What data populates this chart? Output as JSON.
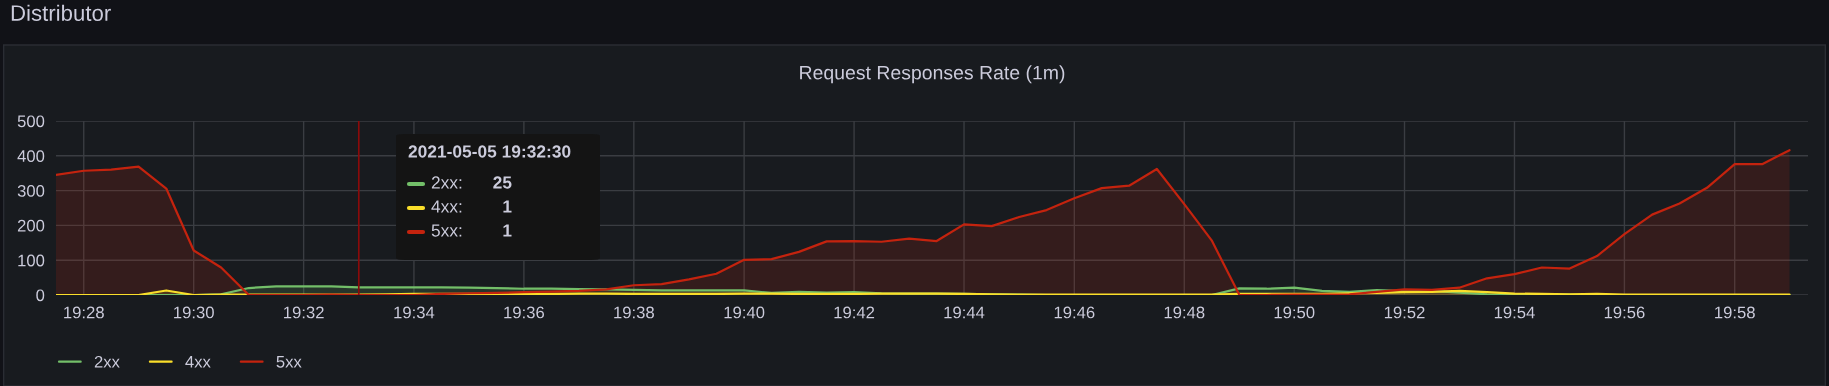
{
  "chart_data": {
    "type": "area",
    "title": "Request Responses Rate (1m)",
    "annotations": [
      "Distributor",
      "2021-05-05 19:32:30",
      "2xx:",
      "25",
      "4xx:",
      "1",
      "5xx:",
      "1"
    ],
    "x": [
      19.4583,
      19.4667,
      19.475,
      19.4833,
      19.4917,
      19.5,
      19.5083,
      19.5167,
      19.525,
      19.5333,
      19.5417,
      19.55,
      19.5583,
      19.5667,
      19.575,
      19.5833,
      19.5917,
      19.6,
      19.6083,
      19.6167,
      19.625,
      19.6333,
      19.6417,
      19.65,
      19.6583,
      19.6667,
      19.675,
      19.6833,
      19.6917,
      19.7,
      19.7083,
      19.7167,
      19.725,
      19.7333,
      19.7417,
      19.75,
      19.7583,
      19.7667,
      19.775,
      19.7833,
      19.7917,
      19.8,
      19.8083,
      19.8167,
      19.825,
      19.8333,
      19.8417,
      19.85,
      19.8583,
      19.8667,
      19.875,
      19.8833,
      19.8917,
      19.9,
      19.9083,
      19.9167,
      19.925,
      19.9333,
      19.9417,
      19.95,
      19.9583,
      19.9667,
      19.975,
      19.9833
    ],
    "series": [
      {
        "name": "2xx",
        "color": "#73bf69",
        "values": [
          0,
          0,
          0,
          0,
          0,
          0,
          2,
          20,
          25,
          25,
          25,
          22,
          22,
          22,
          22,
          21,
          20,
          18,
          18,
          17,
          16,
          15,
          13,
          13,
          13,
          13,
          6,
          9,
          7,
          8,
          5,
          4,
          4,
          3,
          2,
          1,
          0,
          0,
          0,
          0,
          0,
          0,
          0,
          19,
          18,
          21,
          12,
          9,
          14,
          11,
          12,
          7,
          2,
          1,
          1,
          1,
          0,
          0,
          0,
          0,
          0,
          0,
          0,
          0
        ]
      },
      {
        "name": "4xx",
        "color": "#fade2a",
        "values": [
          0,
          0,
          0,
          0,
          13,
          0,
          1,
          1,
          1,
          1,
          1,
          1,
          2,
          3,
          3,
          3,
          3,
          3,
          3,
          4,
          4,
          3,
          3,
          3,
          3,
          4,
          4,
          3,
          3,
          3,
          4,
          4,
          4,
          3,
          2,
          1,
          1,
          1,
          1,
          1,
          1,
          1,
          1,
          3,
          3,
          3,
          3,
          5,
          6,
          8,
          9,
          12,
          8,
          4,
          3,
          2,
          3,
          1,
          1,
          1,
          1,
          1,
          1,
          1
        ]
      },
      {
        "name": "5xx",
        "color": "#c4230e",
        "values": [
          345,
          357,
          360,
          369,
          306,
          128,
          79,
          0,
          0,
          0,
          1,
          0,
          0,
          0,
          3,
          5,
          6,
          8,
          10,
          12,
          16,
          28,
          31,
          45,
          61,
          101,
          103,
          124,
          154,
          155,
          153,
          162,
          155,
          203,
          198,
          224,
          244,
          278,
          307,
          314,
          362,
          261,
          157,
          0,
          0,
          1,
          1,
          2,
          9,
          16,
          15,
          21,
          48,
          60,
          79,
          76,
          112,
          175,
          231,
          263,
          308,
          376,
          376,
          416
        ]
      }
    ],
    "xlim": [
      19.4583,
      19.9889
    ],
    "xticks": [
      {
        "value": 19.4667,
        "label": "19:28"
      },
      {
        "value": 19.5,
        "label": "19:30"
      },
      {
        "value": 19.5333,
        "label": "19:32"
      },
      {
        "value": 19.5667,
        "label": "19:34"
      },
      {
        "value": 19.6,
        "label": "19:36"
      },
      {
        "value": 19.6333,
        "label": "19:38"
      },
      {
        "value": 19.6667,
        "label": "19:40"
      },
      {
        "value": 19.7,
        "label": "19:42"
      },
      {
        "value": 19.7333,
        "label": "19:44"
      },
      {
        "value": 19.7667,
        "label": "19:46"
      },
      {
        "value": 19.8,
        "label": "19:48"
      },
      {
        "value": 19.8333,
        "label": "19:50"
      },
      {
        "value": 19.8667,
        "label": "19:52"
      },
      {
        "value": 19.9,
        "label": "19:54"
      },
      {
        "value": 19.9333,
        "label": "19:56"
      },
      {
        "value": 19.9667,
        "label": "19:58"
      }
    ],
    "ylim": [
      0,
      500
    ],
    "yticks": [
      0,
      100,
      200,
      300,
      400,
      500
    ],
    "ref_lines": [
      {
        "axis": "x",
        "value": 19.55,
        "color": "#8b0a0a"
      }
    ],
    "grid": true,
    "legend": "bottom left",
    "marker": "none",
    "line_style": "solid"
  }
}
